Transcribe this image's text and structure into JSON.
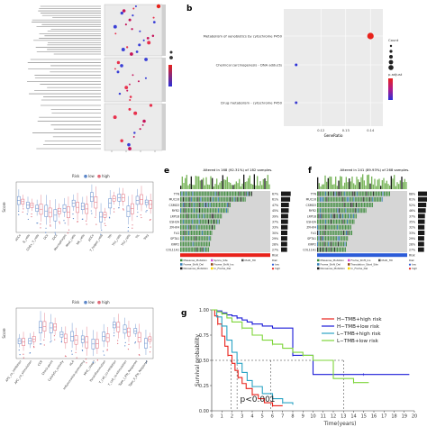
{
  "labels": {
    "b": "b",
    "e": "e",
    "f": "f",
    "g": "g"
  },
  "panel_a": {
    "facet_count": 3,
    "rows_per_facet": [
      22,
      14,
      12
    ],
    "legend_titles": [
      "Count",
      "p.adjust"
    ]
  },
  "panel_b": {
    "title": "",
    "pathways": [
      "Metabolism of xenobiotics by cytochrome P450",
      "Chemical carcinogenesis - DNA adducts",
      "Drug metabolism - cytochrome P450"
    ],
    "gene_ratio": [
      0.14,
      0.11,
      0.11
    ],
    "xlabel": "GeneRatio",
    "xticks": [
      "0.12",
      "0.13",
      "0.14"
    ],
    "legend": {
      "count_title": "Count",
      "padj_title": "p.adjust"
    },
    "point_colors": [
      "#e8221b",
      "#2b2fd8",
      "#3b3bd0"
    ]
  },
  "panel_c": {
    "legend_title": "Risk",
    "legend_items": [
      "low",
      "high"
    ],
    "colors": {
      "low": "#5b86c8",
      "high": "#e06a78"
    },
    "ylabel": "Score",
    "categories": [
      "aDCs",
      "B_cells",
      "CD8+_T_cells",
      "DCs",
      "iDCs",
      "Macrophages",
      "Mast_cells",
      "NK_cells",
      "pDCs",
      "T_helper_cells",
      "Tfh",
      "Th1_cells",
      "Th2_cells",
      "TIL",
      "Treg"
    ]
  },
  "panel_d": {
    "legend_title": "Risk",
    "legend_items": [
      "low",
      "high"
    ],
    "ylabel": "Score",
    "categories": [
      "APC_co_inhibition",
      "APC_co_stimulation",
      "CCR",
      "Check-point",
      "Cytolytic_activity",
      "HLA",
      "Inflammation-promoting",
      "MHC_class_I",
      "Parainflammation",
      "T_cell_co-inhibition",
      "T_cell_co-stimulation",
      "Type_I_IFN_Response",
      "Type_II_IFN_Response"
    ]
  },
  "panel_e": {
    "title": "Altered in 168 (92.31%) of 182 samples.",
    "genes": [
      "TTN",
      "MUC16",
      "CSMD3",
      "RYR2",
      "LRP1B",
      "USH2A",
      "ZFHX4",
      "FLG",
      "SPTA1",
      "XIRP2",
      "COL11A1"
    ],
    "percents": [
      "67%",
      "61%",
      "47%",
      "45%",
      "39%",
      "37%",
      "33%",
      "30%",
      "29%",
      "28%",
      "27%"
    ],
    "legend": [
      "Missense_Mutation",
      "Frame_Shift_Del",
      "Nonsense_Mutation",
      "Splice_Site",
      "Frame_Shift_Ins",
      "In_Frame_Del",
      "Multi_Hit"
    ],
    "risk_legend": [
      "low",
      "high"
    ],
    "risk_title": "Risk"
  },
  "panel_f": {
    "title": "Altered in 241 (89.93%) of 268 samples.",
    "genes": [
      "TTN",
      "MUC16",
      "CSMD3",
      "RYR2",
      "LRP1B",
      "USH2A",
      "ZFHX4",
      "FLG",
      "SPTA1",
      "XIRP2",
      "COL11A1"
    ],
    "percents": [
      "68%",
      "61%",
      "52%",
      "46%",
      "37%",
      "35%",
      "32%",
      "33%",
      "29%",
      "28%",
      "27%"
    ],
    "legend": [
      "Missense_Mutation",
      "Frame_Shift_Del",
      "Nonsense_Mutation",
      "Frame_Shift_Ins",
      "Translation_Start_Site",
      "In_Frame_Del",
      "Multi_Hit"
    ],
    "risk_legend": [
      "low",
      "high"
    ],
    "risk_title": "Risk"
  },
  "chart_data": [
    {
      "type": "line",
      "title": "",
      "xlabel": "Time(years)",
      "ylabel": "Survival probability",
      "xlim": [
        0,
        20
      ],
      "ylim": [
        0,
        1
      ],
      "xticks": [
        "0",
        "1",
        "2",
        "3",
        "4",
        "5",
        "6",
        "7",
        "8",
        "9",
        "10",
        "11",
        "12",
        "13",
        "14",
        "15",
        "16",
        "17",
        "18",
        "19",
        "20"
      ],
      "yticks": [
        "0.00",
        "0.25",
        "0.50",
        "0.75",
        "1.00"
      ],
      "annotation": "p<0.001",
      "series": [
        {
          "name": "H−TMB+high risk",
          "color": "#e8221b",
          "x": [
            0,
            0.3,
            0.6,
            1.0,
            1.3,
            1.6,
            2.0,
            2.3,
            2.6,
            3.0,
            3.4,
            4.0,
            4.6,
            5.2,
            6.0,
            7.0
          ],
          "y": [
            1.0,
            0.94,
            0.86,
            0.74,
            0.64,
            0.55,
            0.47,
            0.4,
            0.33,
            0.27,
            0.22,
            0.16,
            0.12,
            0.08,
            0.05,
            0.05
          ]
        },
        {
          "name": "H−TMB+low risk",
          "color": "#1b1bd8",
          "x": [
            0,
            0.5,
            1.0,
            1.5,
            2.0,
            2.5,
            3.0,
            3.5,
            4.0,
            5.0,
            6.0,
            8.0,
            10.0,
            12.0,
            15.0,
            19.5
          ],
          "y": [
            1.0,
            0.99,
            0.97,
            0.95,
            0.94,
            0.92,
            0.9,
            0.88,
            0.86,
            0.84,
            0.82,
            0.55,
            0.36,
            0.36,
            0.36,
            0.36
          ]
        },
        {
          "name": "L−TMB+high risk",
          "color": "#2aa3c4",
          "x": [
            0,
            0.5,
            1.0,
            1.5,
            2.0,
            2.5,
            3.0,
            3.5,
            4.0,
            5.0,
            6.0,
            7.0,
            8.0
          ],
          "y": [
            1.0,
            0.93,
            0.84,
            0.7,
            0.58,
            0.47,
            0.38,
            0.3,
            0.24,
            0.17,
            0.12,
            0.08,
            0.06
          ]
        },
        {
          "name": "L−TMB+low risk",
          "color": "#7ed53a",
          "x": [
            0,
            0.5,
            1.0,
            1.5,
            2.0,
            3.0,
            4.0,
            5.0,
            6.0,
            7.0,
            8.0,
            9.0,
            10.0,
            12.0,
            14.0,
            15.5
          ],
          "y": [
            1.0,
            0.98,
            0.96,
            0.92,
            0.88,
            0.82,
            0.75,
            0.7,
            0.66,
            0.62,
            0.58,
            0.55,
            0.5,
            0.32,
            0.28,
            0.28
          ]
        }
      ]
    }
  ]
}
